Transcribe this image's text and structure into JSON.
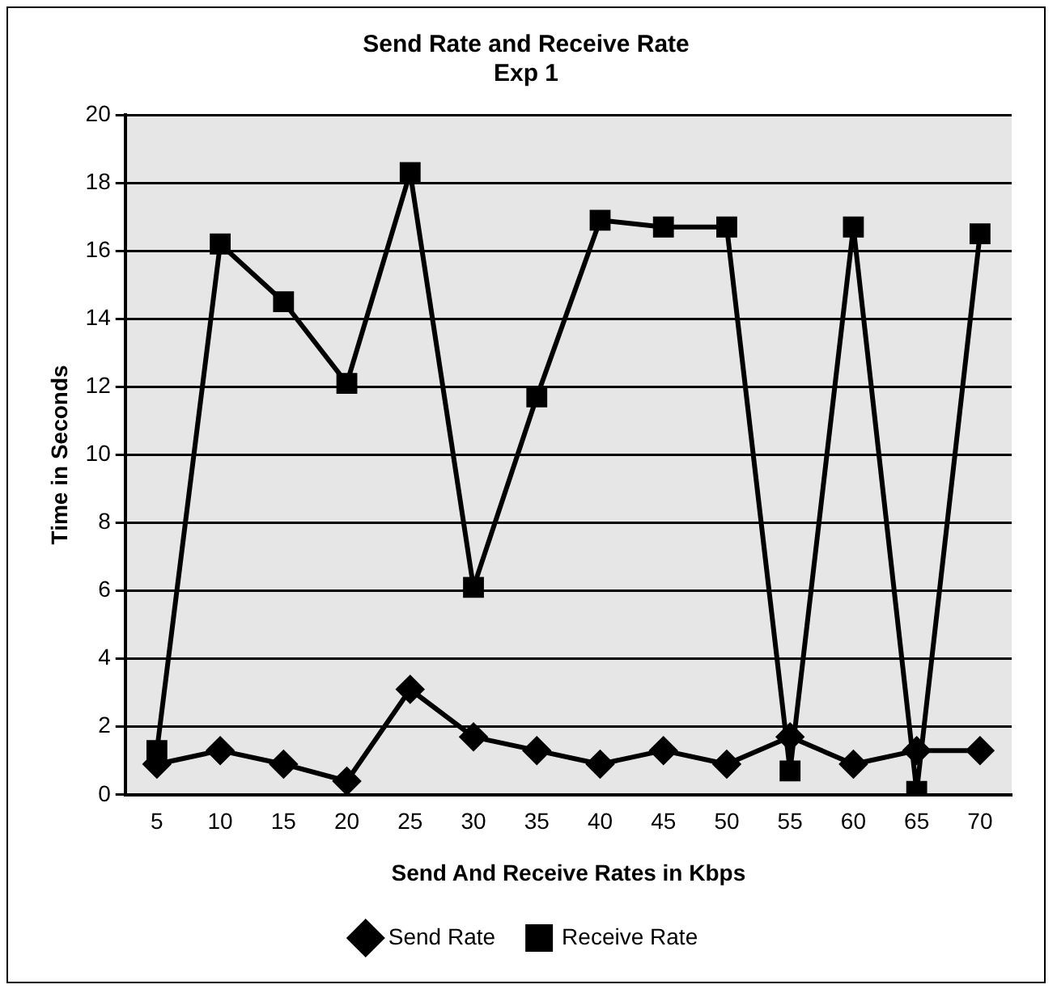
{
  "chart_data": {
    "type": "line",
    "title": [
      "Send Rate and Receive Rate",
      "Exp 1"
    ],
    "xlabel": "Send And Receive Rates in Kbps",
    "ylabel": "Time in Seconds",
    "categories": [
      "5",
      "10",
      "15",
      "20",
      "25",
      "30",
      "35",
      "40",
      "45",
      "50",
      "55",
      "60",
      "65",
      "70"
    ],
    "series": [
      {
        "name": "Send Rate",
        "color": "#000000",
        "marker": "diamond",
        "values": [
          0.9,
          1.3,
          0.9,
          0.4,
          3.1,
          1.7,
          1.3,
          0.9,
          1.3,
          0.9,
          1.7,
          0.9,
          1.3,
          1.3
        ]
      },
      {
        "name": "Receive Rate",
        "color": "#000000",
        "marker": "square",
        "values": [
          1.3,
          16.2,
          14.5,
          12.1,
          18.3,
          6.1,
          11.7,
          16.9,
          16.7,
          16.7,
          0.7,
          16.7,
          0.1,
          16.5
        ]
      }
    ],
    "ylim": [
      0,
      20
    ],
    "yticks": [
      0,
      2,
      4,
      6,
      8,
      10,
      12,
      14,
      16,
      18,
      20
    ],
    "grid": "y",
    "legend": "bottom",
    "line_style": "solid"
  }
}
